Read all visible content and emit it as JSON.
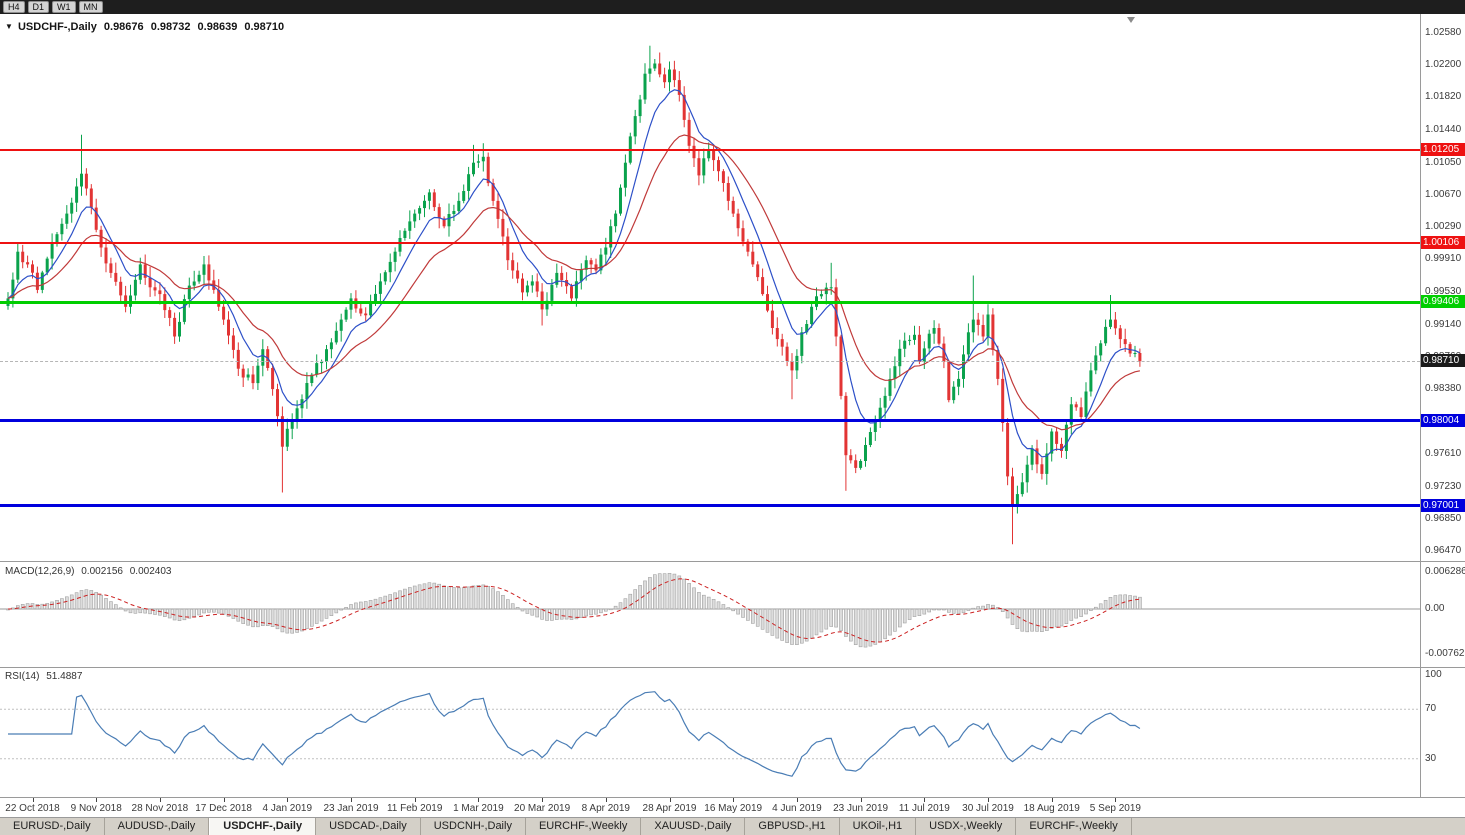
{
  "toolbar": {
    "periods": [
      {
        "label": "H4"
      },
      {
        "label": "D1"
      },
      {
        "label": "W1"
      },
      {
        "label": "MN"
      }
    ]
  },
  "chart": {
    "symbol_label": "USDCHF-,Daily",
    "ohlc": {
      "open": "0.98676",
      "high": "0.98732",
      "low": "0.98639",
      "close": "0.98710"
    }
  },
  "price_axis": {
    "labels": [
      "1.02580",
      "1.02200",
      "1.01820",
      "1.01440",
      "1.01050",
      "1.00670",
      "1.00290",
      "0.99910",
      "0.99530",
      "0.99140",
      "0.98760",
      "0.98380",
      "0.97610",
      "0.97230",
      "0.96850",
      "0.96470"
    ]
  },
  "hlines": [
    {
      "label": "1.01205",
      "price": 1.01205,
      "color": "#ee1111",
      "width": 2,
      "kind": "resistance"
    },
    {
      "label": "1.00106",
      "price": 1.00106,
      "color": "#ee1111",
      "width": 2,
      "kind": "resistance"
    },
    {
      "label": "0.99406",
      "price": 0.99406,
      "color": "#00ce00",
      "width": 3,
      "kind": "resistance"
    },
    {
      "label": "0.98004",
      "price": 0.98004,
      "color": "#0000dd",
      "width": 3,
      "kind": "support"
    },
    {
      "label": "0.97001",
      "price": 0.97001,
      "color": "#0000dd",
      "width": 3,
      "kind": "support"
    }
  ],
  "current_price": {
    "label": "0.98710",
    "price": 0.9871,
    "badge_color": "#1a1a1a"
  },
  "macd": {
    "label": "MACD(12,26,9)",
    "value_macd": "0.002156",
    "value_signal": "0.002403",
    "axis_labels": [
      "0.006286",
      "0.00",
      "-0.00762"
    ],
    "axis_values": [
      0.006286,
      0,
      -0.00762
    ]
  },
  "rsi": {
    "label": "RSI(14)",
    "value": "51.4887",
    "axis_labels": [
      "100",
      "70",
      "30"
    ],
    "levels": [
      70,
      30
    ]
  },
  "date_axis": {
    "labels": [
      "22 Oct 2018",
      "9 Nov 2018",
      "28 Nov 2018",
      "17 Dec 2018",
      "4 Jan 2019",
      "23 Jan 2019",
      "11 Feb 2019",
      "1 Mar 2019",
      "20 Mar 2019",
      "8 Apr 2019",
      "28 Apr 2019",
      "16 May 2019",
      "4 Jun 2019",
      "23 Jun 2019",
      "11 Jul 2019",
      "30 Jul 2019",
      "18 Aug 2019",
      "5 Sep 2019"
    ]
  },
  "tabs": [
    {
      "label": "EURUSD-,Daily",
      "active": false
    },
    {
      "label": "AUDUSD-,Daily",
      "active": false
    },
    {
      "label": "USDCHF-,Daily",
      "active": true
    },
    {
      "label": "USDCAD-,Daily",
      "active": false
    },
    {
      "label": "USDCNH-,Daily",
      "active": false
    },
    {
      "label": "EURCHF-,Weekly",
      "active": false
    },
    {
      "label": "XAUUSD-,Daily",
      "active": false
    },
    {
      "label": "GBPUSD-,H1",
      "active": false
    },
    {
      "label": "UKOil-,H1",
      "active": false
    },
    {
      "label": "USDX-,Weekly",
      "active": false
    },
    {
      "label": "EURCHF-,Weekly",
      "active": false
    }
  ],
  "colors": {
    "up": "#0aa24c",
    "down": "#e23434",
    "ma_fast": "#2d50c8",
    "ma_slow": "#c03a3a",
    "macd_hist": "#dcdcdc",
    "macd_hist_border": "#a2a2a2",
    "macd_signal": "#cc2222",
    "rsi_line": "#4a7db5"
  },
  "chart_data": {
    "type": "candlestick",
    "symbol": "USDCHF",
    "timeframe": "Daily",
    "title": "USDCHF-,Daily 0.98676 0.98732 0.98639 0.98710",
    "count": 232,
    "price_range": [
      0.9647,
      1.0258
    ],
    "first_label_index": 5,
    "label_step": 13,
    "levels": [
      1.01205,
      1.00106,
      0.99406,
      0.98004,
      0.97001
    ],
    "moving_average_periods": [
      8,
      20
    ],
    "macd_settings": [
      12,
      26,
      9
    ],
    "rsi_period": 14,
    "anchors": [
      [
        0,
        0.9945
      ],
      [
        2,
        1.0
      ],
      [
        4,
        0.9985
      ],
      [
        6,
        0.9955
      ],
      [
        9,
        1.001
      ],
      [
        12,
        1.0045
      ],
      [
        15,
        1.0092
      ],
      [
        17,
        1.0052
      ],
      [
        19,
        1.0005
      ],
      [
        21,
        0.9975
      ],
      [
        24,
        0.9935
      ],
      [
        27,
        0.9985
      ],
      [
        29,
        0.9958
      ],
      [
        31,
        0.995
      ],
      [
        34,
        0.99
      ],
      [
        37,
        0.996
      ],
      [
        40,
        0.9985
      ],
      [
        42,
        0.9955
      ],
      [
        44,
        0.992
      ],
      [
        47,
        0.9862
      ],
      [
        50,
        0.9845
      ],
      [
        52,
        0.9885
      ],
      [
        54,
        0.9838
      ],
      [
        56,
        0.977
      ],
      [
        58,
        0.9802
      ],
      [
        60,
        0.9826
      ],
      [
        62,
        0.9855
      ],
      [
        65,
        0.9885
      ],
      [
        68,
        0.992
      ],
      [
        70,
        0.9945
      ],
      [
        73,
        0.9925
      ],
      [
        76,
        0.9965
      ],
      [
        79,
        1.0
      ],
      [
        83,
        1.0045
      ],
      [
        86,
        1.007
      ],
      [
        89,
        1.003
      ],
      [
        92,
        1.006
      ],
      [
        95,
        1.0105
      ],
      [
        97,
        1.0112
      ],
      [
        99,
        1.006
      ],
      [
        102,
        0.999
      ],
      [
        105,
        0.9952
      ],
      [
        107,
        0.9965
      ],
      [
        109,
        0.9932
      ],
      [
        112,
        0.9975
      ],
      [
        115,
        0.9945
      ],
      [
        118,
        0.999
      ],
      [
        120,
        0.9978
      ],
      [
        122,
        1.0005
      ],
      [
        124,
        1.0045
      ],
      [
        126,
        1.0105
      ],
      [
        128,
        1.016
      ],
      [
        130,
        1.021
      ],
      [
        132,
        1.0222
      ],
      [
        134,
        1.02
      ],
      [
        135,
        1.0215
      ],
      [
        137,
        1.0185
      ],
      [
        139,
        1.0125
      ],
      [
        141,
        1.009
      ],
      [
        143,
        1.012
      ],
      [
        145,
        1.0095
      ],
      [
        147,
        1.006
      ],
      [
        148,
        1.0045
      ],
      [
        150,
        1.0012
      ],
      [
        152,
        0.9985
      ],
      [
        154,
        0.995
      ],
      [
        156,
        0.991
      ],
      [
        158,
        0.9888
      ],
      [
        160,
        0.986
      ],
      [
        162,
        0.9905
      ],
      [
        164,
        0.9935
      ],
      [
        166,
        0.995
      ],
      [
        168,
        0.9958
      ],
      [
        169,
        0.99
      ],
      [
        170,
        0.983
      ],
      [
        171,
        0.976
      ],
      [
        173,
        0.9745
      ],
      [
        175,
        0.9772
      ],
      [
        177,
        0.98
      ],
      [
        179,
        0.983
      ],
      [
        181,
        0.9865
      ],
      [
        183,
        0.9895
      ],
      [
        185,
        0.9902
      ],
      [
        186,
        0.987
      ],
      [
        187,
        0.9886
      ],
      [
        189,
        0.991
      ],
      [
        191,
        0.987
      ],
      [
        192,
        0.9825
      ],
      [
        194,
        0.985
      ],
      [
        196,
        0.9905
      ],
      [
        197,
        0.992
      ],
      [
        199,
        0.99
      ],
      [
        200,
        0.9926
      ],
      [
        202,
        0.985
      ],
      [
        204,
        0.9735
      ],
      [
        205,
        0.97
      ],
      [
        207,
        0.9728
      ],
      [
        209,
        0.9768
      ],
      [
        211,
        0.9738
      ],
      [
        213,
        0.9788
      ],
      [
        215,
        0.9765
      ],
      [
        217,
        0.982
      ],
      [
        219,
        0.9805
      ],
      [
        221,
        0.986
      ],
      [
        223,
        0.9892
      ],
      [
        225,
        0.992
      ],
      [
        227,
        0.9897
      ],
      [
        229,
        0.988
      ],
      [
        231,
        0.9871
      ]
    ],
    "wick_overrides": [
      {
        "i": 15,
        "high": 1.0138
      },
      {
        "i": 56,
        "low": 0.9716
      },
      {
        "i": 95,
        "high": 1.0126
      },
      {
        "i": 97,
        "high": 1.0128
      },
      {
        "i": 109,
        "low": 0.9913
      },
      {
        "i": 131,
        "high": 1.0243
      },
      {
        "i": 133,
        "high": 1.0235
      },
      {
        "i": 160,
        "low": 0.9826
      },
      {
        "i": 168,
        "high": 0.9987
      },
      {
        "i": 171,
        "low": 0.9718
      },
      {
        "i": 197,
        "high": 0.9972
      },
      {
        "i": 205,
        "low": 0.9655
      },
      {
        "i": 225,
        "high": 0.9949
      }
    ]
  }
}
